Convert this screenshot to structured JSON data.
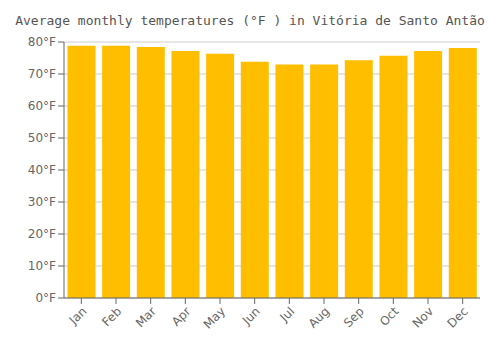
{
  "chart_data": {
    "type": "bar",
    "title": "Average monthly temperatures (°F ) in Vitória de Santo Antão",
    "categories": [
      "Jan",
      "Feb",
      "Mar",
      "Apr",
      "May",
      "Jun",
      "Jul",
      "Aug",
      "Sep",
      "Oct",
      "Nov",
      "Dec"
    ],
    "values": [
      78.8,
      78.8,
      78.4,
      77.2,
      76.3,
      73.8,
      73.0,
      73.0,
      74.3,
      75.7,
      77.2,
      78.1
    ],
    "color": "#FFBE00",
    "ylim": [
      0,
      80
    ],
    "yticks": [
      {
        "value": 0,
        "label": "0°F"
      },
      {
        "value": 10,
        "label": "10°F"
      },
      {
        "value": 20,
        "label": "20°F"
      },
      {
        "value": 30,
        "label": "30°F"
      },
      {
        "value": 40,
        "label": "40°F"
      },
      {
        "value": 50,
        "label": "50°F"
      },
      {
        "value": 60,
        "label": "60°F"
      },
      {
        "value": 70,
        "label": "70°F"
      },
      {
        "value": 80,
        "label": "80°F"
      }
    ],
    "grid": true
  }
}
